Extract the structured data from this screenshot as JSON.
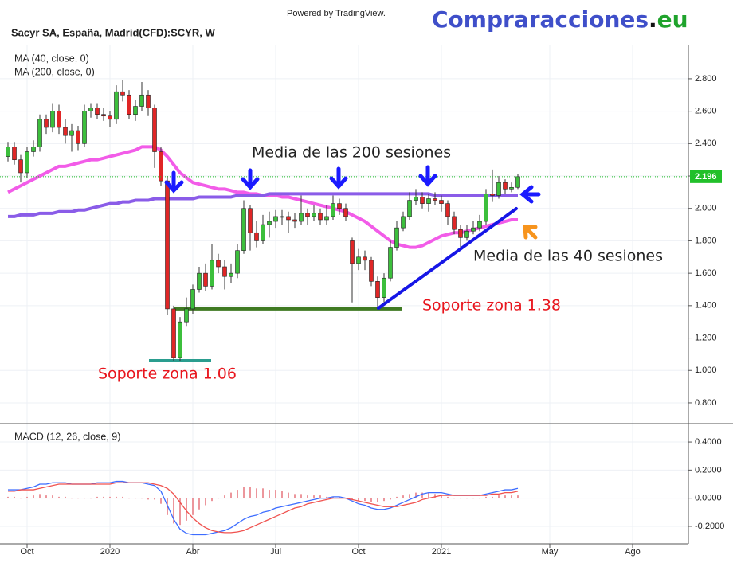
{
  "header": {
    "symbol": "Sacyr SA, España, Madrid(CFD):SCYR, W",
    "powered_by": "Powered by TradingView.",
    "logo": [
      "Compraracciones",
      ".",
      "eu"
    ]
  },
  "chart_data": [
    {
      "type": "candlestick",
      "categories": [
        null,
        null,
        null,
        "Oct",
        null,
        null,
        null,
        null,
        null,
        null,
        null,
        null,
        null,
        null,
        null,
        null,
        "2020",
        null,
        null,
        null,
        null,
        null,
        null,
        null,
        null,
        null,
        null,
        null,
        null,
        "Abr",
        null,
        null,
        null,
        null,
        null,
        null,
        null,
        null,
        null,
        null,
        null,
        null,
        "Jul",
        null,
        null,
        null,
        null,
        null,
        null,
        null,
        null,
        null,
        null,
        null,
        null,
        "Oct",
        null,
        null,
        null,
        null,
        null,
        null,
        null,
        null,
        null,
        null,
        null,
        null,
        "2021",
        null,
        null,
        null,
        null,
        null,
        null,
        null,
        null,
        null,
        null,
        null,
        null,
        null,
        null,
        null,
        null,
        "May",
        null,
        null,
        null,
        null,
        null,
        null,
        null,
        null,
        null,
        null,
        null,
        null,
        "Ago",
        null,
        null,
        null,
        null,
        null,
        null,
        null
      ],
      "open": [
        2.32,
        2.38,
        2.3,
        2.22,
        2.35,
        2.38,
        2.55,
        2.5,
        2.6,
        2.5,
        2.45,
        2.48,
        2.4,
        2.6,
        2.62,
        2.58,
        2.57,
        2.55,
        2.72,
        2.7,
        2.58,
        2.63,
        2.7,
        2.62,
        2.35,
        2.17,
        1.38,
        1.08,
        1.3,
        1.38,
        1.5,
        1.6,
        1.52,
        1.68,
        1.64,
        1.58,
        1.6,
        1.74,
        2.0,
        1.85,
        1.8,
        1.9,
        1.92,
        1.95,
        1.95,
        1.93,
        1.92,
        1.97,
        1.95,
        1.97,
        1.93,
        1.95,
        2.03,
        2.0,
        1.8,
        1.66,
        1.7,
        1.68,
        1.55,
        1.45,
        1.57,
        1.76,
        1.88,
        1.95,
        2.05,
        2.07,
        2.03,
        2.06,
        2.05,
        2.03,
        1.95,
        1.87,
        1.82,
        1.86,
        1.88,
        1.92,
        2.09,
        2.08,
        2.16,
        2.12,
        2.13,
        null,
        null,
        null,
        null,
        null,
        null,
        null,
        null,
        null,
        null,
        null,
        null,
        null,
        null,
        null,
        null,
        null,
        null,
        null,
        null,
        null,
        null,
        null,
        null,
        null
      ],
      "high": [
        2.41,
        2.41,
        2.33,
        2.38,
        2.42,
        2.58,
        2.58,
        2.65,
        2.64,
        2.55,
        2.52,
        2.51,
        2.64,
        2.65,
        2.65,
        2.62,
        2.6,
        2.76,
        2.79,
        2.73,
        2.67,
        2.78,
        2.73,
        2.64,
        2.38,
        2.2,
        1.4,
        1.33,
        1.45,
        1.53,
        1.64,
        1.66,
        1.78,
        1.72,
        1.68,
        1.66,
        1.78,
        2.05,
        2.02,
        1.92,
        1.96,
        1.98,
        1.99,
        1.99,
        1.98,
        1.97,
        2.08,
        2.0,
        2.02,
        2.0,
        2.02,
        2.08,
        2.06,
        2.03,
        1.82,
        1.75,
        1.74,
        1.7,
        1.58,
        1.6,
        1.8,
        1.92,
        1.98,
        2.1,
        2.12,
        2.1,
        2.09,
        2.1,
        2.08,
        2.05,
        1.98,
        1.9,
        1.9,
        1.92,
        1.96,
        2.12,
        2.24,
        2.2,
        2.18,
        2.16,
        2.21,
        null,
        null,
        null,
        null,
        null,
        null,
        null,
        null,
        null,
        null,
        null,
        null,
        null,
        null,
        null,
        null,
        null,
        null,
        null,
        null,
        null,
        null,
        null,
        null,
        null
      ],
      "low": [
        2.29,
        2.27,
        2.16,
        2.19,
        2.32,
        2.35,
        2.46,
        2.47,
        2.46,
        2.4,
        2.35,
        2.36,
        2.38,
        2.56,
        2.55,
        2.54,
        2.5,
        2.52,
        2.66,
        2.55,
        2.54,
        2.6,
        2.57,
        2.25,
        2.14,
        1.34,
        1.06,
        1.06,
        1.27,
        1.35,
        1.48,
        1.49,
        1.5,
        1.6,
        1.5,
        1.54,
        1.57,
        1.72,
        1.74,
        1.76,
        1.78,
        1.82,
        1.88,
        1.9,
        1.85,
        1.88,
        1.9,
        1.9,
        1.92,
        1.9,
        1.9,
        1.93,
        1.96,
        1.92,
        1.42,
        1.62,
        1.62,
        1.52,
        1.38,
        1.42,
        1.55,
        1.74,
        1.86,
        1.93,
        2.02,
        2.0,
        1.98,
        2.02,
        1.98,
        1.9,
        1.84,
        1.76,
        1.8,
        1.84,
        1.86,
        1.9,
        2.04,
        2.06,
        2.09,
        2.1,
        2.12,
        null,
        null,
        null,
        null,
        null,
        null,
        null,
        null,
        null,
        null,
        null,
        null,
        null,
        null,
        null,
        null,
        null,
        null,
        null,
        null,
        null,
        null,
        null,
        null,
        null
      ],
      "close": [
        2.38,
        2.3,
        2.22,
        2.35,
        2.38,
        2.55,
        2.5,
        2.6,
        2.5,
        2.45,
        2.48,
        2.4,
        2.6,
        2.62,
        2.58,
        2.57,
        2.55,
        2.72,
        2.7,
        2.58,
        2.63,
        2.7,
        2.62,
        2.35,
        2.17,
        1.38,
        1.08,
        1.3,
        1.38,
        1.5,
        1.6,
        1.52,
        1.68,
        1.64,
        1.58,
        1.6,
        1.74,
        2.0,
        1.85,
        1.8,
        1.9,
        1.92,
        1.95,
        1.95,
        1.93,
        1.92,
        1.97,
        1.95,
        1.97,
        1.93,
        1.95,
        2.03,
        2.0,
        1.95,
        1.66,
        1.7,
        1.68,
        1.55,
        1.45,
        1.57,
        1.76,
        1.88,
        1.95,
        2.05,
        2.07,
        2.03,
        2.06,
        2.05,
        2.03,
        1.95,
        1.87,
        1.82,
        1.86,
        1.88,
        1.92,
        2.09,
        2.08,
        2.16,
        2.12,
        2.13,
        2.196,
        null,
        null,
        null,
        null,
        null,
        null,
        null,
        null,
        null,
        null,
        null,
        null,
        null,
        null,
        null,
        null,
        null,
        null,
        null,
        null,
        null,
        null,
        null,
        null,
        null
      ],
      "up_color": "#3cbf3c",
      "down_color": "#e02626",
      "series": [
        {
          "name": "MA (40, close, 0)",
          "color": "#f25ce8",
          "values": [
            2.1,
            2.12,
            2.14,
            2.16,
            2.18,
            2.2,
            2.22,
            2.24,
            2.26,
            2.26,
            2.27,
            2.28,
            2.29,
            2.3,
            2.3,
            2.31,
            2.32,
            2.33,
            2.34,
            2.35,
            2.36,
            2.38,
            2.38,
            2.38,
            2.36,
            2.32,
            2.27,
            2.22,
            2.19,
            2.16,
            2.15,
            2.14,
            2.13,
            2.12,
            2.12,
            2.11,
            2.1,
            2.1,
            2.09,
            2.09,
            2.08,
            2.08,
            2.08,
            2.07,
            2.07,
            2.06,
            2.05,
            2.04,
            2.03,
            2.02,
            2.01,
            2.0,
            1.99,
            1.98,
            1.96,
            1.94,
            1.92,
            1.89,
            1.86,
            1.83,
            1.8,
            1.78,
            1.77,
            1.76,
            1.76,
            1.77,
            1.79,
            1.81,
            1.83,
            1.84,
            1.85,
            1.85,
            1.86,
            1.87,
            1.88,
            1.89,
            1.9,
            1.91,
            1.92,
            1.93,
            1.93,
            null,
            null,
            null,
            null,
            null,
            null,
            null,
            null,
            null,
            null,
            null,
            null,
            null,
            null,
            null,
            null,
            null,
            null,
            null,
            null,
            null,
            null,
            null,
            null,
            null
          ]
        },
        {
          "name": "MA (200, close, 0)",
          "color": "#8a5ce8",
          "values": [
            1.95,
            1.95,
            1.96,
            1.96,
            1.96,
            1.97,
            1.97,
            1.97,
            1.98,
            1.98,
            1.98,
            1.99,
            1.99,
            2.0,
            2.01,
            2.02,
            2.03,
            2.03,
            2.04,
            2.04,
            2.05,
            2.05,
            2.05,
            2.06,
            2.06,
            2.06,
            2.06,
            2.06,
            2.06,
            2.06,
            2.07,
            2.07,
            2.07,
            2.07,
            2.07,
            2.07,
            2.08,
            2.08,
            2.08,
            2.08,
            2.08,
            2.09,
            2.09,
            2.09,
            2.09,
            2.09,
            2.09,
            2.09,
            2.09,
            2.09,
            2.09,
            2.09,
            2.09,
            2.09,
            2.09,
            2.09,
            2.09,
            2.09,
            2.09,
            2.09,
            2.09,
            2.09,
            2.09,
            2.09,
            2.09,
            2.09,
            2.09,
            2.08,
            2.08,
            2.08,
            2.08,
            2.08,
            2.08,
            2.08,
            2.08,
            2.08,
            2.08,
            2.08,
            2.08,
            2.08,
            2.08,
            null,
            null,
            null,
            null,
            null,
            null,
            null,
            null,
            null,
            null,
            null,
            null,
            null,
            null,
            null,
            null,
            null,
            null,
            null,
            null,
            null,
            null,
            null,
            null,
            null
          ]
        }
      ],
      "ylim": [
        0.672,
        3.006
      ],
      "yticks": [
        {
          "value": 0.8,
          "label": "0.800"
        },
        {
          "value": 1.0,
          "label": "1.000"
        },
        {
          "value": 1.2,
          "label": "1.200"
        },
        {
          "value": 1.4,
          "label": "1.400"
        },
        {
          "value": 1.6,
          "label": "1.600"
        },
        {
          "value": 1.8,
          "label": "1.800"
        },
        {
          "value": 2.0,
          "label": "2.000"
        },
        {
          "value": 2.2,
          "label": "2.200"
        },
        {
          "value": 2.4,
          "label": "2.400"
        },
        {
          "value": 2.6,
          "label": "2.600"
        },
        {
          "value": 2.8,
          "label": "2.800"
        }
      ],
      "grid": true,
      "last_price": 2.196,
      "last_price_color": "#22c02a",
      "supports": [
        {
          "value": 1.38,
          "label": "Soporte zona 1.38",
          "color": "#3f7a22"
        },
        {
          "value": 1.06,
          "label": "Soporte zona 1.06",
          "color": "#2a9d8f"
        }
      ],
      "annotations": [
        "Media de las 200 sesiones",
        "Media de las 40 sesiones"
      ]
    },
    {
      "type": "macd",
      "title": "MACD (12, 26, close, 9)",
      "series": [
        {
          "color": "#3d6dff",
          "values": [
            0.06,
            0.06,
            0.06,
            0.07,
            0.08,
            0.1,
            0.1,
            0.11,
            0.11,
            0.11,
            0.1,
            0.1,
            0.1,
            0.1,
            0.11,
            0.11,
            0.11,
            0.12,
            0.12,
            0.11,
            0.11,
            0.11,
            0.1,
            0.09,
            0.05,
            -0.05,
            -0.15,
            -0.22,
            -0.25,
            -0.26,
            -0.26,
            -0.26,
            -0.25,
            -0.24,
            -0.23,
            -0.21,
            -0.18,
            -0.15,
            -0.13,
            -0.12,
            -0.1,
            -0.09,
            -0.07,
            -0.06,
            -0.05,
            -0.04,
            -0.03,
            -0.02,
            -0.01,
            0.0,
            0.0,
            0.01,
            0.01,
            0.0,
            -0.02,
            -0.04,
            -0.05,
            -0.07,
            -0.08,
            -0.08,
            -0.07,
            -0.05,
            -0.03,
            -0.01,
            0.01,
            0.03,
            0.04,
            0.04,
            0.04,
            0.03,
            0.02,
            0.02,
            0.02,
            0.02,
            0.02,
            0.03,
            0.04,
            0.05,
            0.06,
            0.06,
            0.07,
            null,
            null,
            null,
            null,
            null,
            null,
            null,
            null,
            null,
            null,
            null,
            null,
            null,
            null,
            null,
            null,
            null,
            null,
            null,
            null,
            null,
            null,
            null,
            null,
            null
          ]
        },
        {
          "color": "#f0524f",
          "values": [
            0.05,
            0.05,
            0.06,
            0.06,
            0.06,
            0.07,
            0.08,
            0.09,
            0.1,
            0.1,
            0.1,
            0.1,
            0.1,
            0.1,
            0.1,
            0.1,
            0.1,
            0.11,
            0.11,
            0.11,
            0.11,
            0.11,
            0.11,
            0.1,
            0.09,
            0.07,
            0.03,
            -0.03,
            -0.09,
            -0.14,
            -0.18,
            -0.21,
            -0.23,
            -0.24,
            -0.245,
            -0.245,
            -0.24,
            -0.23,
            -0.21,
            -0.19,
            -0.17,
            -0.15,
            -0.13,
            -0.11,
            -0.09,
            -0.07,
            -0.06,
            -0.04,
            -0.03,
            -0.02,
            -0.01,
            0.0,
            0.0,
            0.0,
            -0.01,
            -0.02,
            -0.03,
            -0.04,
            -0.05,
            -0.06,
            -0.06,
            -0.06,
            -0.05,
            -0.04,
            -0.03,
            -0.01,
            0.0,
            0.01,
            0.02,
            0.02,
            0.02,
            0.02,
            0.02,
            0.02,
            0.02,
            0.02,
            0.03,
            0.03,
            0.04,
            0.04,
            0.05,
            null,
            null,
            null,
            null,
            null,
            null,
            null,
            null,
            null,
            null,
            null,
            null,
            null,
            null,
            null,
            null,
            null,
            null,
            null,
            null,
            null,
            null,
            null,
            null,
            null
          ]
        }
      ],
      "histogram": {
        "color": "#e0505a",
        "values": [
          0.01,
          0.01,
          0,
          0.01,
          0.02,
          0.03,
          0.02,
          0.02,
          0.01,
          0.01,
          0,
          0,
          0,
          0,
          0.01,
          0.01,
          0.01,
          0.01,
          0.01,
          0,
          0,
          0,
          -0.01,
          -0.01,
          -0.04,
          -0.12,
          -0.18,
          -0.19,
          -0.16,
          -0.12,
          -0.08,
          -0.05,
          -0.02,
          0,
          0.02,
          0.04,
          0.06,
          0.08,
          0.08,
          0.07,
          0.07,
          0.06,
          0.06,
          0.05,
          0.04,
          0.03,
          0.03,
          0.02,
          0.02,
          0.02,
          0.01,
          0.01,
          0.01,
          0,
          -0.01,
          -0.02,
          -0.02,
          -0.03,
          -0.03,
          -0.02,
          -0.01,
          0.01,
          0.02,
          0.03,
          0.04,
          0.04,
          0.04,
          0.03,
          0.02,
          0.01,
          0,
          0,
          0,
          0,
          0,
          0.01,
          0.01,
          0.02,
          0.02,
          0.02,
          0.02,
          null,
          null,
          null,
          null,
          null,
          null,
          null,
          null,
          null,
          null,
          null,
          null,
          null,
          null,
          null,
          null,
          null,
          null,
          null,
          null,
          null,
          null,
          null,
          null,
          null
        ]
      },
      "ylim": [
        -0.325,
        0.525
      ],
      "yticks": [
        {
          "value": -0.2,
          "label": "-0.2000"
        },
        {
          "value": 0,
          "label": "0.0000"
        },
        {
          "value": 0.2,
          "label": "0.2000"
        },
        {
          "value": 0.4,
          "label": "0.4000"
        }
      ],
      "grid": true
    }
  ]
}
